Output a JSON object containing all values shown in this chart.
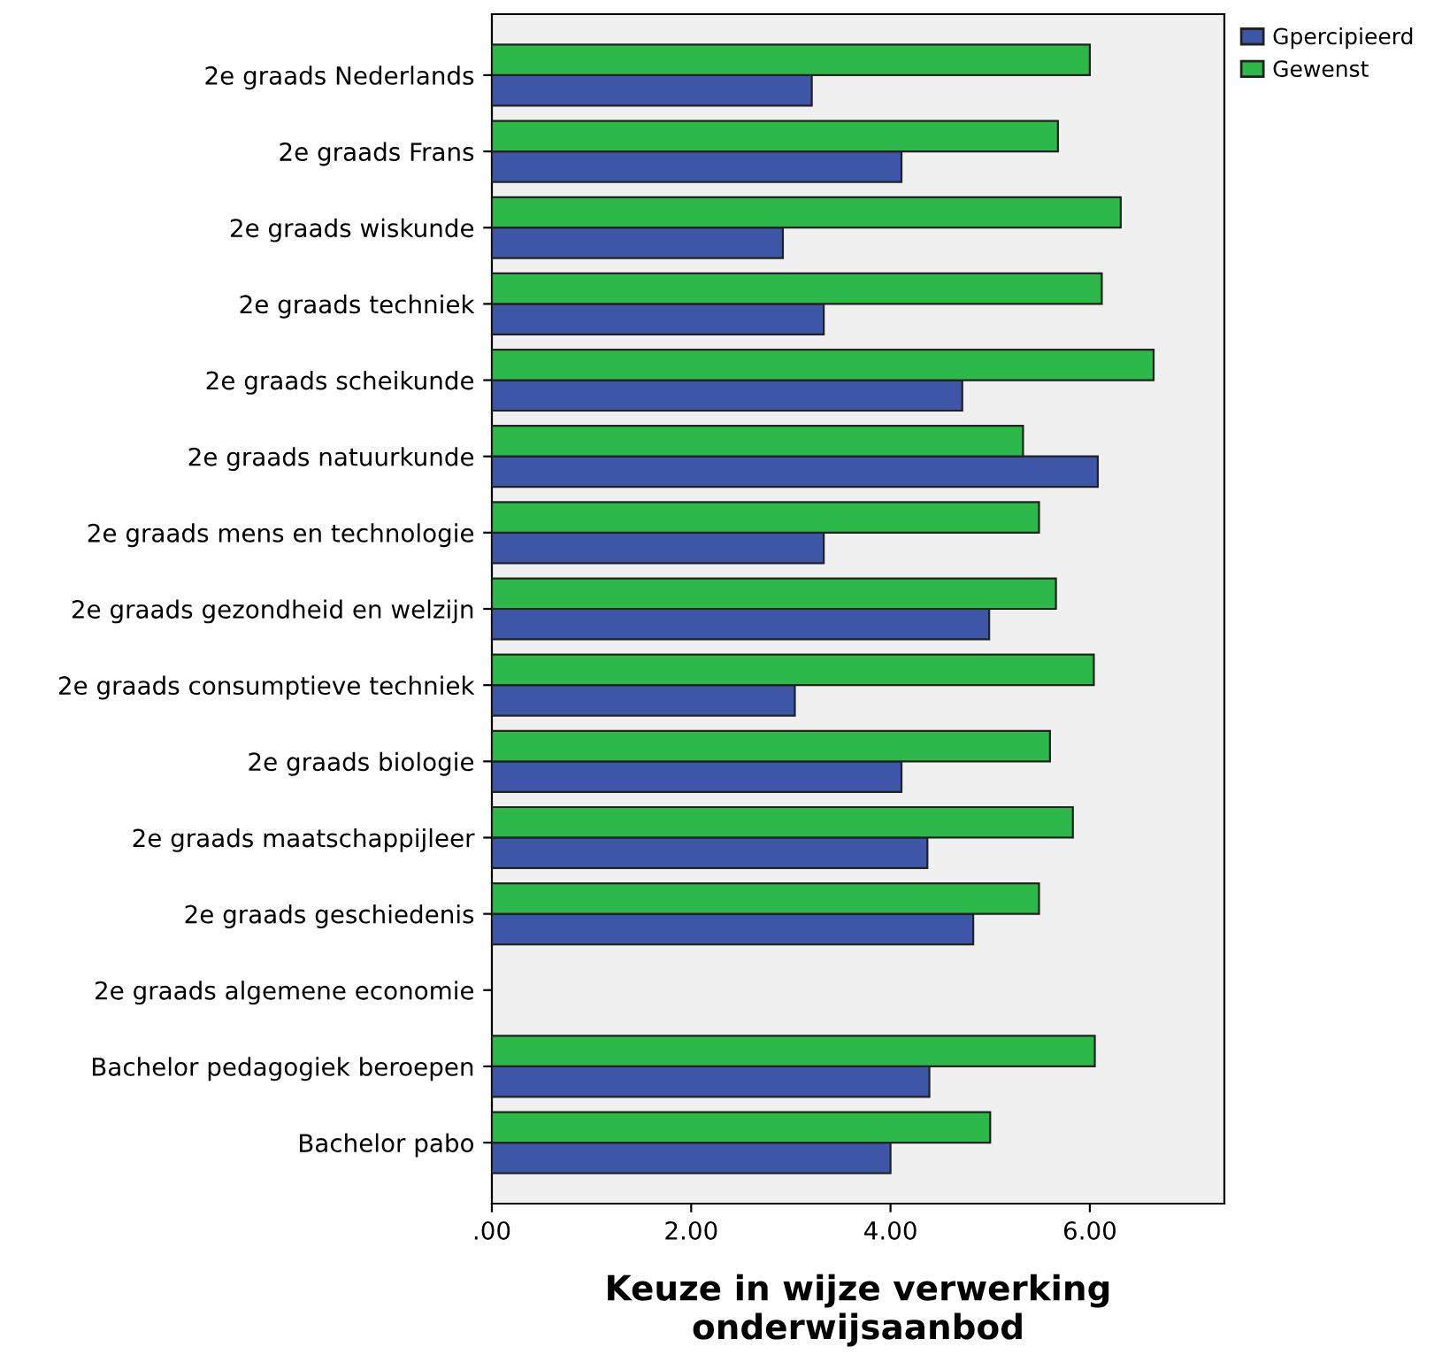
{
  "chart_data": {
    "type": "bar",
    "orientation": "horizontal",
    "xlabel": "Keuze in wijze verwerking\nonderwijsaanbod",
    "categories": [
      "2e graads Nederlands",
      "2e graads Frans",
      "2e graads wiskunde",
      "2e graads techniek",
      "2e graads scheikunde",
      "2e graads natuurkunde",
      "2e graads mens en technologie",
      "2e graads gezondheid en welzijn",
      "2e graads consumptieve techniek",
      "2e graads biologie",
      "2e graads maatschappijleer",
      "2e graads geschiedenis",
      "2e graads algemene economie",
      "Bachelor pedagogiek beroepen",
      "Bachelor pabo"
    ],
    "series": [
      {
        "name": "Gpercipieerd",
        "color": "#3d56a8",
        "values": [
          3.21,
          4.11,
          2.92,
          3.33,
          4.72,
          6.08,
          3.33,
          4.99,
          3.04,
          4.11,
          4.37,
          4.83,
          null,
          4.39,
          4.0
        ]
      },
      {
        "name": "Gewenst",
        "color": "#2db84a",
        "values": [
          6.0,
          5.68,
          6.31,
          6.12,
          6.64,
          5.33,
          5.49,
          5.66,
          6.04,
          5.6,
          5.83,
          5.49,
          null,
          6.05,
          5.0
        ]
      }
    ],
    "xlim": [
      0,
      7.35
    ],
    "xticks": [
      {
        "value": 0,
        "label": ".00"
      },
      {
        "value": 2,
        "label": "2.00"
      },
      {
        "value": 4,
        "label": "4.00"
      },
      {
        "value": 6,
        "label": "6.00"
      }
    ],
    "grid": false,
    "legend": "top right"
  }
}
